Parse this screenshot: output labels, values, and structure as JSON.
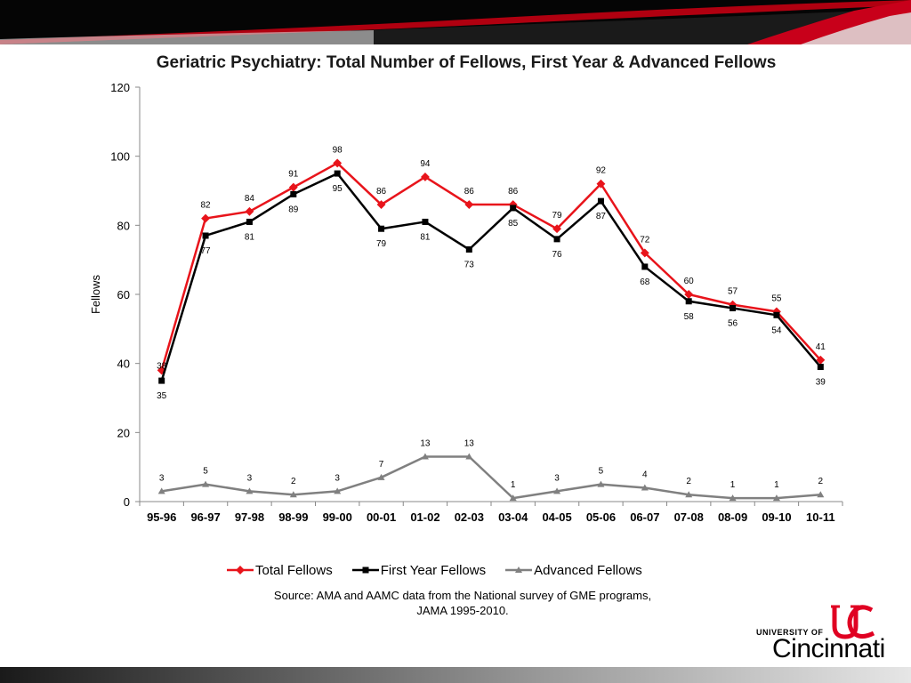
{
  "chart_data": {
    "type": "line",
    "title": "Geriatric Psychiatry: Total Number of Fellows, First Year & Advanced Fellows",
    "ylabel": "Fellows",
    "xlabel": "",
    "ylim": [
      0,
      120
    ],
    "yticks": [
      0,
      20,
      40,
      60,
      80,
      100,
      120
    ],
    "grid": false,
    "legend_position": "bottom",
    "categories": [
      "95-96",
      "96-97",
      "97-98",
      "98-99",
      "99-00",
      "00-01",
      "01-02",
      "02-03",
      "03-04",
      "04-05",
      "05-06",
      "06-07",
      "07-08",
      "08-09",
      "09-10",
      "10-11"
    ],
    "series": [
      {
        "name": "Total Fellows",
        "color": "#e8141b",
        "marker": "diamond",
        "values": [
          38,
          82,
          84,
          91,
          98,
          86,
          94,
          86,
          86,
          79,
          92,
          72,
          60,
          57,
          55,
          41
        ]
      },
      {
        "name": "First Year Fellows",
        "color": "#000000",
        "marker": "square",
        "values": [
          35,
          77,
          81,
          89,
          95,
          79,
          81,
          73,
          85,
          76,
          87,
          68,
          58,
          56,
          54,
          39
        ]
      },
      {
        "name": "Advanced Fellows",
        "color": "#808080",
        "marker": "triangle",
        "values": [
          3,
          5,
          3,
          2,
          3,
          7,
          13,
          13,
          1,
          3,
          5,
          4,
          2,
          1,
          1,
          2
        ]
      }
    ]
  },
  "source_note": "Source: AMA and AAMC data from the National survey of GME programs, JAMA 1995-2010.",
  "logo": {
    "small_text": "UNIVERSITY OF",
    "big_text": "Cincinnati",
    "color": "#e00122"
  }
}
